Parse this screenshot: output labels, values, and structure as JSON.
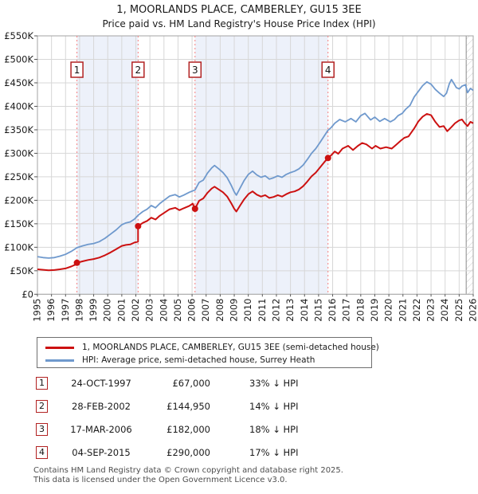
{
  "title": {
    "line1": "1, MOORLANDS PLACE, CAMBERLEY, GU15 3EE",
    "line2": "Price paid vs. HM Land Registry's House Price Index (HPI)"
  },
  "chart_data": {
    "type": "line",
    "x_range": [
      1995,
      2026
    ],
    "y_range_gbp": [
      0,
      550000
    ],
    "y_tick_step_gbp": 50000,
    "value_unit": "GBP thousands",
    "grid": true,
    "y_tick_labels": [
      "£0",
      "£50K",
      "£100K",
      "£150K",
      "£200K",
      "£250K",
      "£300K",
      "£350K",
      "£400K",
      "£450K",
      "£500K",
      "£550K"
    ],
    "x_tick_labels": [
      "1995",
      "1996",
      "1997",
      "1998",
      "1999",
      "2000",
      "2001",
      "2002",
      "2003",
      "2004",
      "2005",
      "2006",
      "2007",
      "2008",
      "2009",
      "2010",
      "2011",
      "2012",
      "2013",
      "2014",
      "2015",
      "2016",
      "2017",
      "2018",
      "2019",
      "2020",
      "2021",
      "2022",
      "2023",
      "2024",
      "2025",
      "2026"
    ],
    "colors": {
      "price_line": "#cc1111",
      "hpi_line": "#6f99cd",
      "band": "#edf1fa",
      "grid": "#d7d7d7",
      "border": "#a3a3a3",
      "dashed": "#f58080",
      "marker_border": "#b22222",
      "hatch": "#c9c9c9",
      "axis_text": "#1a1a1a"
    },
    "shaded_bands": [
      [
        1997.81,
        2002.16
      ],
      [
        2006.21,
        2015.67
      ]
    ],
    "hatch_band": [
      2025.5,
      2026.0
    ],
    "series": [
      {
        "name": "1, MOORLANDS PLACE, CAMBERLEY, GU15 3EE (semi-detached house)",
        "color": "#cc1111",
        "points": [
          [
            1995.0,
            53
          ],
          [
            1995.4,
            52
          ],
          [
            1995.8,
            51
          ],
          [
            1996.2,
            51.5
          ],
          [
            1996.6,
            53
          ],
          [
            1997.0,
            55
          ],
          [
            1997.4,
            59
          ],
          [
            1997.7,
            63
          ],
          [
            1997.81,
            67
          ],
          [
            1998.2,
            70
          ],
          [
            1998.6,
            73
          ],
          [
            1999.0,
            75
          ],
          [
            1999.4,
            78
          ],
          [
            1999.8,
            83
          ],
          [
            2000.2,
            89
          ],
          [
            2000.6,
            96
          ],
          [
            2001.0,
            103
          ],
          [
            2001.3,
            105
          ],
          [
            2001.6,
            106
          ],
          [
            2001.9,
            110
          ],
          [
            2002.16,
            112
          ],
          [
            2002.16,
            144.95
          ],
          [
            2002.5,
            152
          ],
          [
            2002.8,
            156
          ],
          [
            2003.1,
            163
          ],
          [
            2003.4,
            159
          ],
          [
            2003.7,
            167
          ],
          [
            2004.0,
            173
          ],
          [
            2004.4,
            181
          ],
          [
            2004.8,
            184
          ],
          [
            2005.1,
            179
          ],
          [
            2005.4,
            183
          ],
          [
            2005.8,
            188
          ],
          [
            2006.05,
            193
          ],
          [
            2006.21,
            182
          ],
          [
            2006.5,
            199
          ],
          [
            2006.8,
            204
          ],
          [
            2007.1,
            216
          ],
          [
            2007.4,
            225
          ],
          [
            2007.6,
            229
          ],
          [
            2007.9,
            223
          ],
          [
            2008.2,
            217
          ],
          [
            2008.5,
            208
          ],
          [
            2008.8,
            193
          ],
          [
            2009.0,
            182
          ],
          [
            2009.15,
            176
          ],
          [
            2009.4,
            188
          ],
          [
            2009.7,
            202
          ],
          [
            2010.0,
            213
          ],
          [
            2010.3,
            219
          ],
          [
            2010.6,
            212
          ],
          [
            2010.9,
            208
          ],
          [
            2011.2,
            211
          ],
          [
            2011.5,
            205
          ],
          [
            2011.8,
            207
          ],
          [
            2012.1,
            211
          ],
          [
            2012.4,
            208
          ],
          [
            2012.7,
            213
          ],
          [
            2013.0,
            217
          ],
          [
            2013.3,
            219
          ],
          [
            2013.6,
            223
          ],
          [
            2013.9,
            230
          ],
          [
            2014.2,
            240
          ],
          [
            2014.5,
            251
          ],
          [
            2014.8,
            259
          ],
          [
            2015.1,
            270
          ],
          [
            2015.4,
            281
          ],
          [
            2015.67,
            290
          ],
          [
            2015.9,
            296
          ],
          [
            2016.15,
            304
          ],
          [
            2016.4,
            299
          ],
          [
            2016.7,
            310
          ],
          [
            2017.1,
            316
          ],
          [
            2017.45,
            307
          ],
          [
            2017.8,
            316
          ],
          [
            2018.1,
            322
          ],
          [
            2018.4,
            319
          ],
          [
            2018.8,
            310
          ],
          [
            2019.05,
            316
          ],
          [
            2019.4,
            310
          ],
          [
            2019.8,
            313
          ],
          [
            2020.2,
            310
          ],
          [
            2020.55,
            319
          ],
          [
            2020.85,
            327
          ],
          [
            2021.1,
            333
          ],
          [
            2021.4,
            336
          ],
          [
            2021.8,
            353
          ],
          [
            2022.1,
            368
          ],
          [
            2022.4,
            378
          ],
          [
            2022.7,
            384
          ],
          [
            2023.0,
            381
          ],
          [
            2023.3,
            367
          ],
          [
            2023.6,
            356
          ],
          [
            2023.9,
            358
          ],
          [
            2024.15,
            347
          ],
          [
            2024.45,
            356
          ],
          [
            2024.7,
            364
          ],
          [
            2025.0,
            370
          ],
          [
            2025.2,
            372
          ],
          [
            2025.4,
            364
          ],
          [
            2025.6,
            358
          ],
          [
            2025.8,
            367
          ],
          [
            2026.0,
            364
          ]
        ]
      },
      {
        "name": "HPI: Average price, semi-detached house, Surrey Heath",
        "color": "#6f99cd",
        "points": [
          [
            1995.0,
            80
          ],
          [
            1995.4,
            78
          ],
          [
            1995.8,
            77
          ],
          [
            1996.2,
            78
          ],
          [
            1996.6,
            81
          ],
          [
            1997.0,
            85
          ],
          [
            1997.4,
            91
          ],
          [
            1997.81,
            99
          ],
          [
            1998.2,
            103
          ],
          [
            1998.6,
            106
          ],
          [
            1999.0,
            108
          ],
          [
            1999.4,
            112
          ],
          [
            1999.8,
            119
          ],
          [
            2000.2,
            128
          ],
          [
            2000.6,
            137
          ],
          [
            2001.0,
            148
          ],
          [
            2001.3,
            152
          ],
          [
            2001.6,
            154
          ],
          [
            2001.9,
            160
          ],
          [
            2002.16,
            168
          ],
          [
            2002.5,
            176
          ],
          [
            2002.8,
            181
          ],
          [
            2003.1,
            189
          ],
          [
            2003.4,
            184
          ],
          [
            2003.7,
            193
          ],
          [
            2004.0,
            200
          ],
          [
            2004.4,
            209
          ],
          [
            2004.8,
            212
          ],
          [
            2005.1,
            207
          ],
          [
            2005.4,
            211
          ],
          [
            2005.8,
            217
          ],
          [
            2006.21,
            222
          ],
          [
            2006.5,
            238
          ],
          [
            2006.8,
            243
          ],
          [
            2007.1,
            258
          ],
          [
            2007.4,
            269
          ],
          [
            2007.6,
            274
          ],
          [
            2007.9,
            267
          ],
          [
            2008.2,
            259
          ],
          [
            2008.5,
            248
          ],
          [
            2008.8,
            231
          ],
          [
            2009.0,
            218
          ],
          [
            2009.15,
            211
          ],
          [
            2009.4,
            225
          ],
          [
            2009.7,
            242
          ],
          [
            2010.0,
            255
          ],
          [
            2010.3,
            262
          ],
          [
            2010.6,
            254
          ],
          [
            2010.9,
            249
          ],
          [
            2011.2,
            252
          ],
          [
            2011.5,
            245
          ],
          [
            2011.8,
            248
          ],
          [
            2012.1,
            252
          ],
          [
            2012.4,
            249
          ],
          [
            2012.7,
            255
          ],
          [
            2013.0,
            259
          ],
          [
            2013.3,
            262
          ],
          [
            2013.6,
            267
          ],
          [
            2013.9,
            275
          ],
          [
            2014.2,
            287
          ],
          [
            2014.5,
            300
          ],
          [
            2014.8,
            310
          ],
          [
            2015.1,
            323
          ],
          [
            2015.4,
            337
          ],
          [
            2015.67,
            349
          ],
          [
            2015.9,
            355
          ],
          [
            2016.15,
            364
          ],
          [
            2016.5,
            372
          ],
          [
            2016.9,
            367
          ],
          [
            2017.3,
            374
          ],
          [
            2017.65,
            367
          ],
          [
            2018.0,
            380
          ],
          [
            2018.3,
            385
          ],
          [
            2018.7,
            371
          ],
          [
            2019.0,
            377
          ],
          [
            2019.35,
            368
          ],
          [
            2019.7,
            374
          ],
          [
            2020.1,
            367
          ],
          [
            2020.4,
            372
          ],
          [
            2020.65,
            380
          ],
          [
            2020.95,
            385
          ],
          [
            2021.2,
            394
          ],
          [
            2021.5,
            402
          ],
          [
            2021.8,
            420
          ],
          [
            2022.1,
            432
          ],
          [
            2022.4,
            444
          ],
          [
            2022.7,
            452
          ],
          [
            2023.0,
            447
          ],
          [
            2023.3,
            436
          ],
          [
            2023.6,
            428
          ],
          [
            2023.9,
            421
          ],
          [
            2024.1,
            428
          ],
          [
            2024.3,
            448
          ],
          [
            2024.45,
            457
          ],
          [
            2024.6,
            450
          ],
          [
            2024.8,
            440
          ],
          [
            2025.0,
            437
          ],
          [
            2025.2,
            443
          ],
          [
            2025.45,
            446
          ],
          [
            2025.6,
            429
          ],
          [
            2025.8,
            438
          ],
          [
            2026.0,
            434
          ]
        ]
      }
    ],
    "sales": [
      {
        "label": "1",
        "year": 1997.81,
        "price_k": 67,
        "date": "24-OCT-1997",
        "price": "£67,000",
        "vs_hpi": "33% ↓ HPI"
      },
      {
        "label": "2",
        "year": 2002.16,
        "price_k": 144.95,
        "date": "28-FEB-2002",
        "price": "£144,950",
        "vs_hpi": "14% ↓ HPI"
      },
      {
        "label": "3",
        "year": 2006.21,
        "price_k": 182,
        "date": "17-MAR-2006",
        "price": "£182,000",
        "vs_hpi": "18% ↓ HPI"
      },
      {
        "label": "4",
        "year": 2015.67,
        "price_k": 290,
        "date": "04-SEP-2015",
        "price": "£290,000",
        "vs_hpi": "17% ↓ HPI"
      }
    ]
  },
  "legend": {
    "items": [
      {
        "label": "1, MOORLANDS PLACE, CAMBERLEY, GU15 3EE (semi-detached house)",
        "color": "#cc1111"
      },
      {
        "label": "HPI: Average price, semi-detached house, Surrey Heath",
        "color": "#6f99cd"
      }
    ]
  },
  "table": {
    "rows": [
      {
        "num": "1",
        "date": "24-OCT-1997",
        "price": "£67,000",
        "pct": "33% ↓ HPI"
      },
      {
        "num": "2",
        "date": "28-FEB-2002",
        "price": "£144,950",
        "pct": "14% ↓ HPI"
      },
      {
        "num": "3",
        "date": "17-MAR-2006",
        "price": "£182,000",
        "pct": "18% ↓ HPI"
      },
      {
        "num": "4",
        "date": "04-SEP-2015",
        "price": "£290,000",
        "pct": "17% ↓ HPI"
      }
    ]
  },
  "footer": {
    "line1": "Contains HM Land Registry data © Crown copyright and database right 2025.",
    "line2": "This data is licensed under the Open Government Licence v3.0."
  }
}
